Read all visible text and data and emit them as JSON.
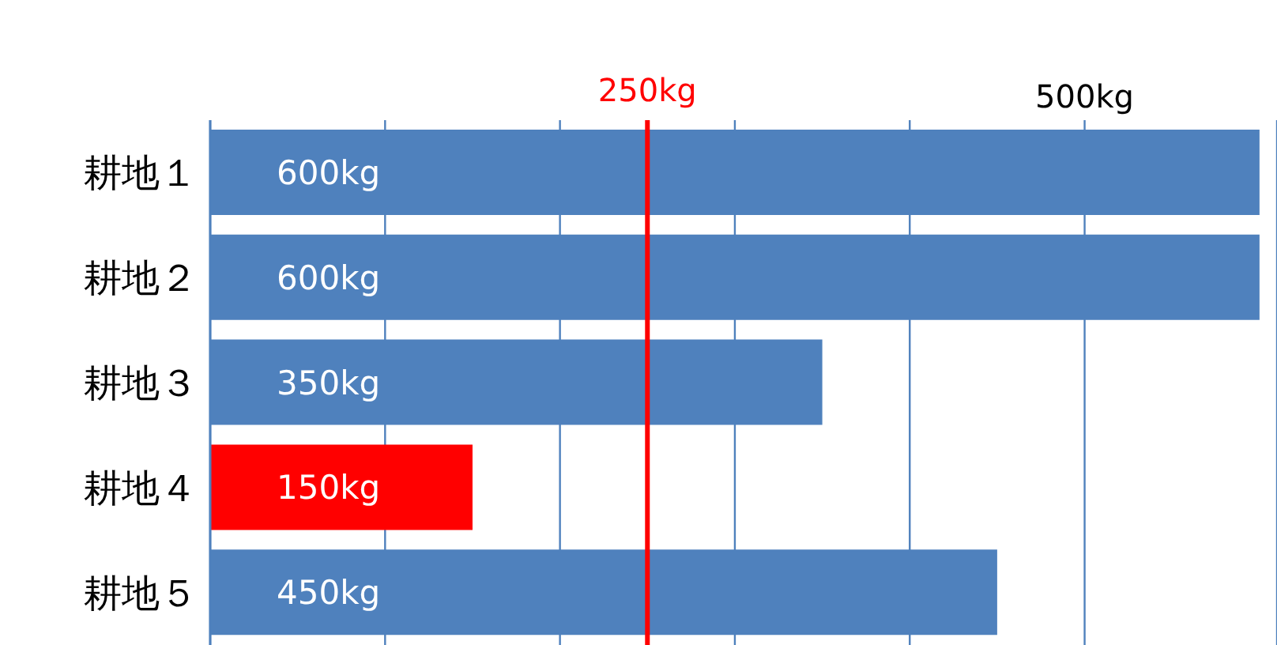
{
  "chart_data": {
    "type": "bar",
    "orientation": "horizontal",
    "categories": [
      "耕地１",
      "耕地２",
      "耕地３",
      "耕地４",
      "耕地５"
    ],
    "values": [
      600,
      600,
      350,
      150,
      450
    ],
    "colors": [
      "#4f81bd",
      "#4f81bd",
      "#4f81bd",
      "#ff0000",
      "#4f81bd"
    ],
    "value_labels": [
      "600kg",
      "600kg",
      "350kg",
      "150kg",
      "450kg"
    ],
    "xlim": [
      0,
      610
    ],
    "xticks": [
      {
        "value": 100,
        "label": null
      },
      {
        "value": 200,
        "label": null
      },
      {
        "value": 300,
        "label": null
      },
      {
        "value": 400,
        "label": null
      },
      {
        "value": 500,
        "label": "500kg"
      }
    ],
    "grid": "x",
    "ref_lines": [
      {
        "axis": "x",
        "value": 250,
        "label": "250kg",
        "color": "#ff0000"
      }
    ]
  }
}
